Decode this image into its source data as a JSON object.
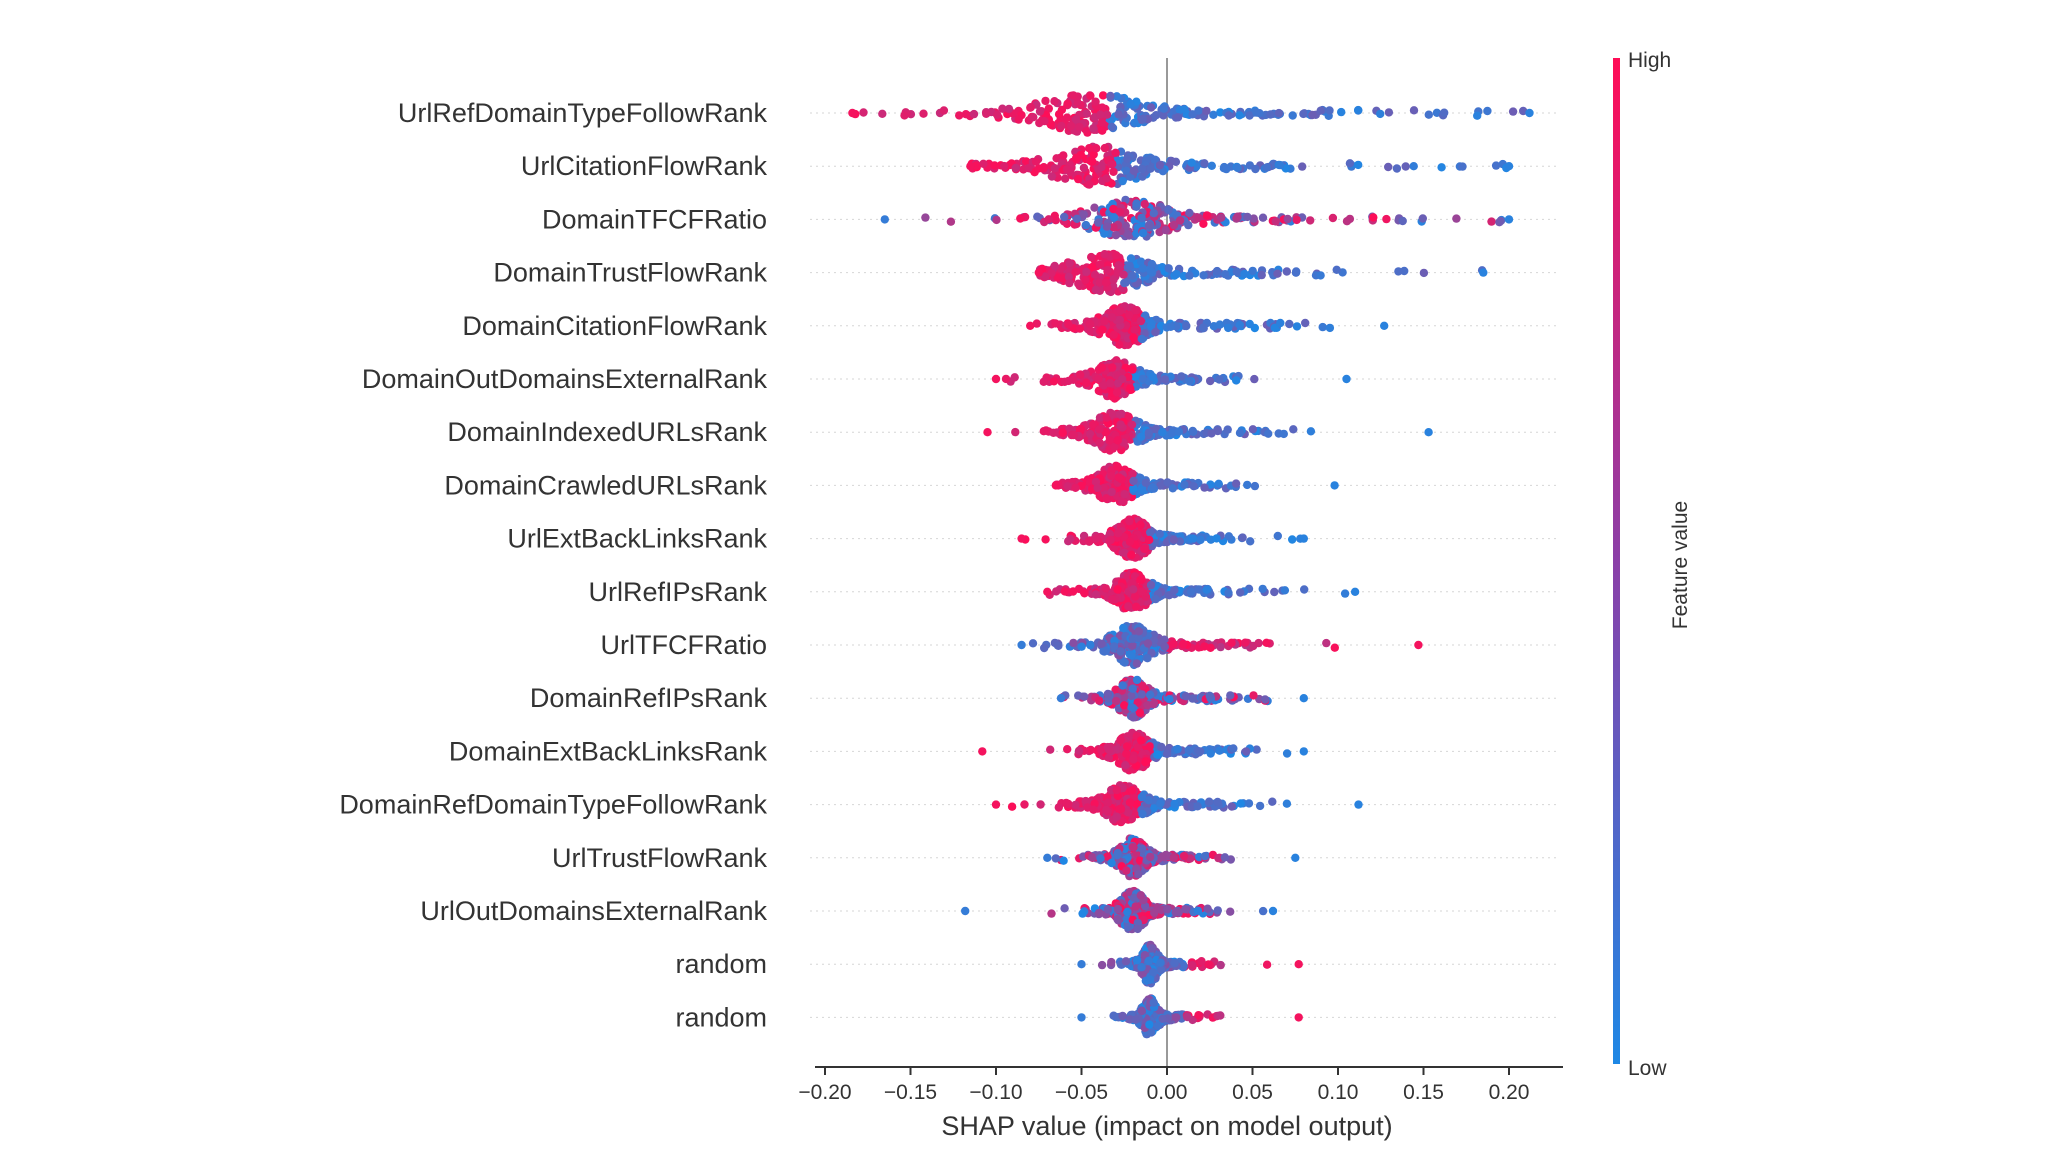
{
  "chart_data": {
    "type": "scatter",
    "subtype": "shap-beeswarm-summary",
    "xlabel": "SHAP value (impact on model output)",
    "xlim": [
      -0.2,
      0.22
    ],
    "x_ticks": [
      "−0.20",
      "−0.15",
      "−0.10",
      "−0.05",
      "0.00",
      "0.05",
      "0.10",
      "0.15",
      "0.20"
    ],
    "x_tick_values": [
      -0.2,
      -0.15,
      -0.1,
      -0.05,
      0.0,
      0.05,
      0.1,
      0.15,
      0.2
    ],
    "colorbar": {
      "title": "Feature value",
      "high_label": "High",
      "low_label": "Low",
      "high_color": "#ff0d57",
      "low_color": "#1e88e5"
    },
    "features": [
      {
        "name": "UrlRefDomainTypeFollowRank",
        "min": -0.184,
        "max": 0.212,
        "center": -0.045,
        "spread": 0.14,
        "high_side": "left"
      },
      {
        "name": "UrlCitationFlowRank",
        "min": -0.115,
        "max": 0.2,
        "center": -0.04,
        "spread": 0.12,
        "high_side": "left"
      },
      {
        "name": "DomainTFCFRatio",
        "min": -0.165,
        "max": 0.2,
        "center": -0.02,
        "spread": 0.11,
        "high_side": "mixed"
      },
      {
        "name": "DomainTrustFlowRank",
        "min": -0.075,
        "max": 0.185,
        "center": -0.035,
        "spread": 0.1,
        "high_side": "left"
      },
      {
        "name": "DomainCitationFlowRank",
        "min": -0.08,
        "max": 0.127,
        "center": -0.025,
        "spread": 0.06,
        "high_side": "left"
      },
      {
        "name": "DomainOutDomainsExternalRank",
        "min": -0.1,
        "max": 0.105,
        "center": -0.03,
        "spread": 0.055,
        "high_side": "left"
      },
      {
        "name": "DomainIndexedURLsRank",
        "min": -0.105,
        "max": 0.153,
        "center": -0.03,
        "spread": 0.06,
        "high_side": "left"
      },
      {
        "name": "DomainCrawledURLsRank",
        "min": -0.065,
        "max": 0.098,
        "center": -0.03,
        "spread": 0.05,
        "high_side": "left"
      },
      {
        "name": "UrlExtBackLinksRank",
        "min": -0.085,
        "max": 0.08,
        "center": -0.02,
        "spread": 0.045,
        "high_side": "left"
      },
      {
        "name": "UrlRefIPsRank",
        "min": -0.07,
        "max": 0.11,
        "center": -0.02,
        "spread": 0.045,
        "high_side": "left"
      },
      {
        "name": "UrlTFCFRatio",
        "min": -0.085,
        "max": 0.147,
        "center": -0.02,
        "spread": 0.055,
        "high_side": "right"
      },
      {
        "name": "DomainRefIPsRank",
        "min": -0.062,
        "max": 0.08,
        "center": -0.02,
        "spread": 0.04,
        "high_side": "mixed"
      },
      {
        "name": "DomainExtBackLinksRank",
        "min": -0.108,
        "max": 0.08,
        "center": -0.02,
        "spread": 0.045,
        "high_side": "left"
      },
      {
        "name": "DomainRefDomainTypeFollowRank",
        "min": -0.1,
        "max": 0.112,
        "center": -0.025,
        "spread": 0.05,
        "high_side": "left"
      },
      {
        "name": "UrlTrustFlowRank",
        "min": -0.07,
        "max": 0.075,
        "center": -0.02,
        "spread": 0.035,
        "high_side": "mixed"
      },
      {
        "name": "UrlOutDomainsExternalRank",
        "min": -0.118,
        "max": 0.062,
        "center": -0.02,
        "spread": 0.035,
        "high_side": "mixed"
      },
      {
        "name": "random",
        "min": -0.05,
        "max": 0.077,
        "center": -0.01,
        "spread": 0.02,
        "high_side": "right"
      },
      {
        "name": "random",
        "min": -0.05,
        "max": 0.077,
        "center": -0.01,
        "spread": 0.02,
        "high_side": "right"
      }
    ]
  }
}
